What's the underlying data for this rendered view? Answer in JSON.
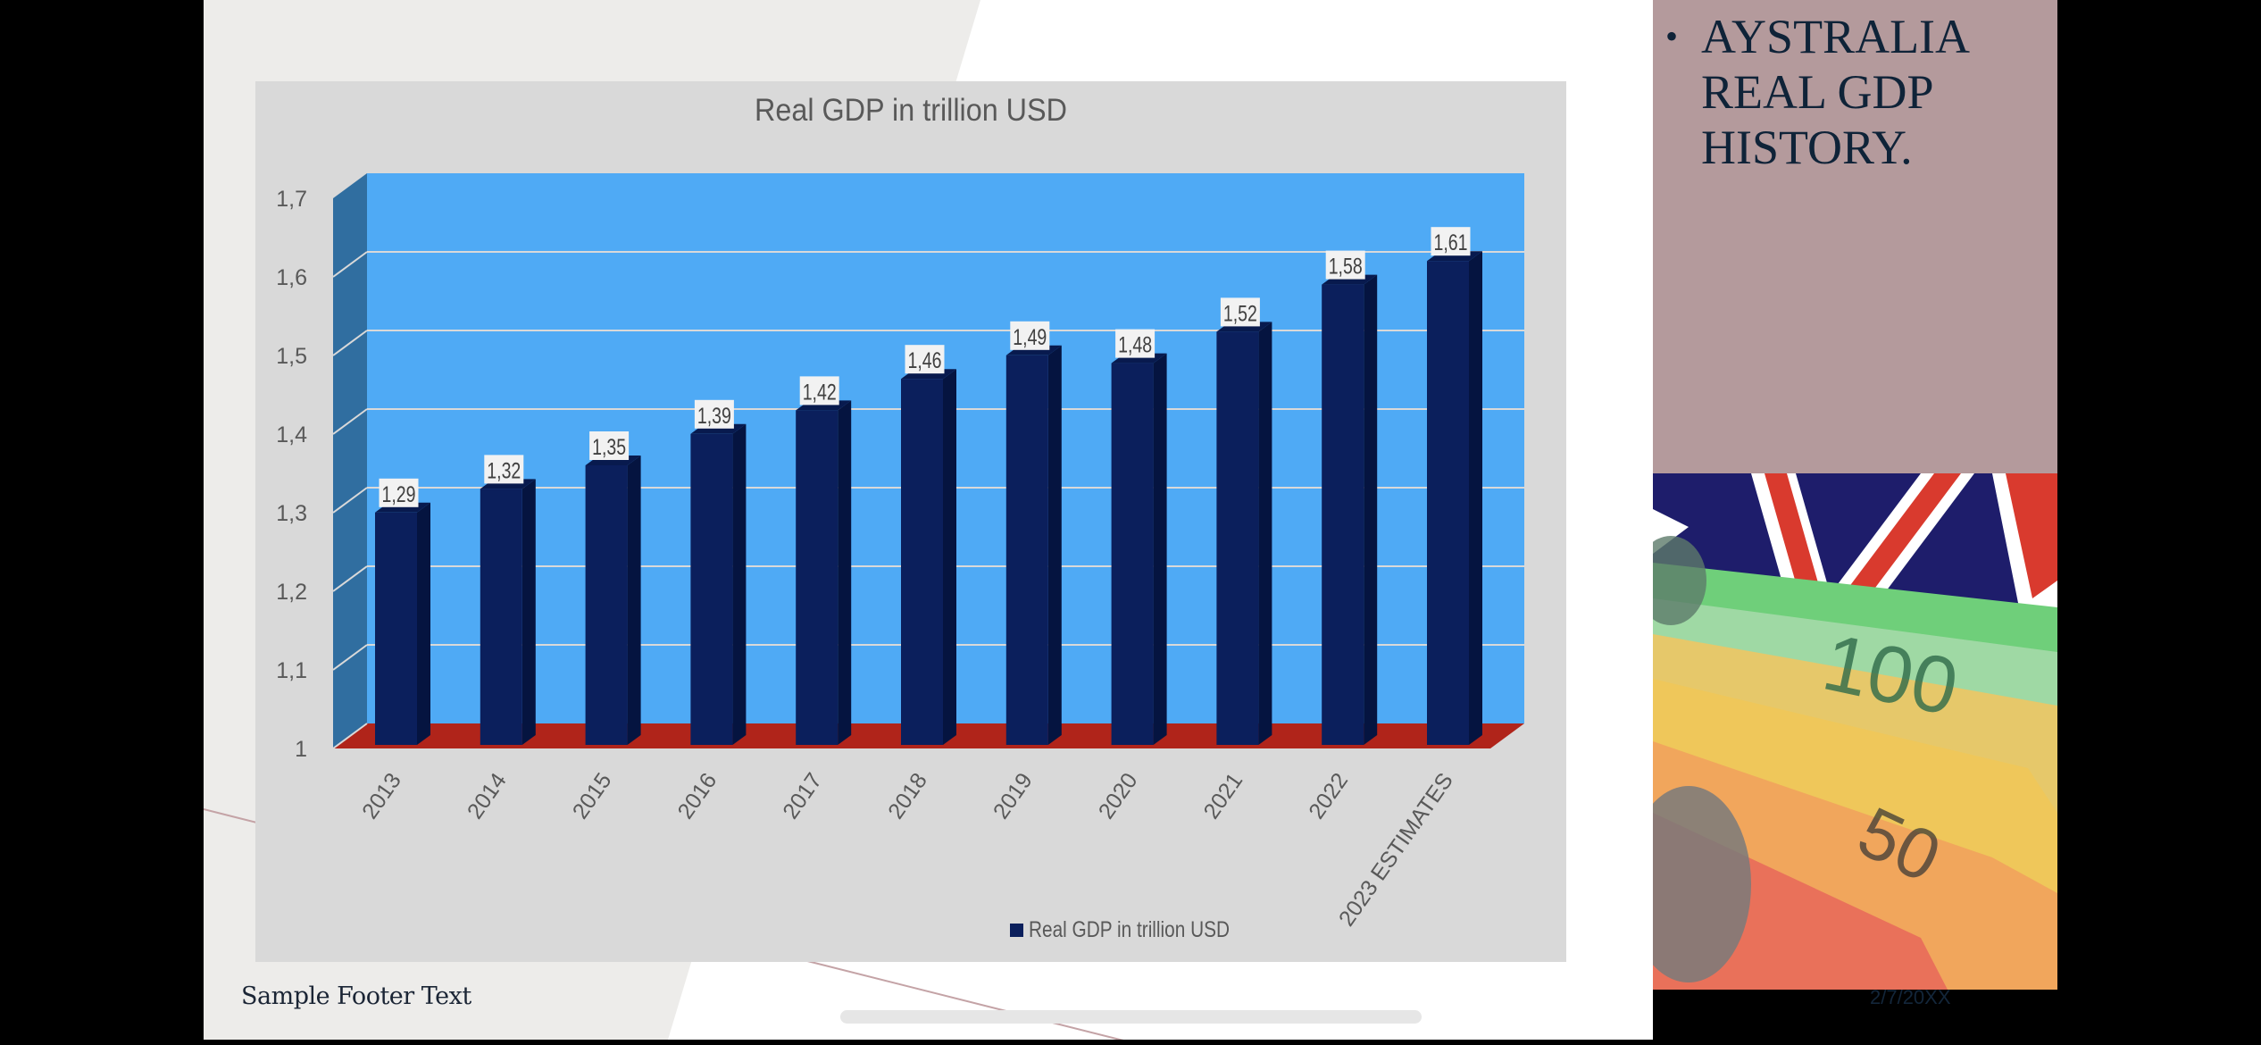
{
  "slide": {
    "footer_text": "Sample Footer Text",
    "date_text": "2/7/20XX",
    "side_panel": {
      "bullet": "•",
      "title": "AYSTRALIA REAL GDP HISTORY."
    },
    "photo_description": "Australian flag with fanned Australian banknotes (100 and 50 dollar notes)",
    "colors": {
      "chart_panel_bg": "#d9d9d9",
      "back_wall": "#4faaf5",
      "side_wall": "#306ea0",
      "floor": "#b0241a",
      "bar_front": "#0b1f5c",
      "bar_side": "#051440",
      "side_panel_bg": "#b49a9c"
    }
  },
  "chart_data": {
    "type": "bar",
    "style": "3d-column",
    "title": "Real GDP in trillion USD",
    "xlabel": "",
    "ylabel": "",
    "categories": [
      "2013",
      "2014",
      "2015",
      "2016",
      "2017",
      "2018",
      "2019",
      "2020",
      "2021",
      "2022",
      "2023 ESTIMATES"
    ],
    "series": [
      {
        "name": "Real GDP in trillion USD",
        "values": [
          1.29,
          1.32,
          1.35,
          1.39,
          1.42,
          1.46,
          1.49,
          1.48,
          1.52,
          1.58,
          1.61
        ],
        "data_labels": [
          "1,29",
          "1,32",
          "1,35",
          "1,39",
          "1,42",
          "1,46",
          "1,49",
          "1,48",
          "1,52",
          "1,58",
          "1,61"
        ],
        "color": "#0b1f5c"
      }
    ],
    "ylim": [
      1,
      1.7
    ],
    "yticks": [
      1,
      1.1,
      1.2,
      1.3,
      1.4,
      1.5,
      1.6,
      1.7
    ],
    "ytick_labels": [
      "1",
      "1,1",
      "1,2",
      "1,3",
      "1,4",
      "1,5",
      "1,6",
      "1,7"
    ],
    "grid": true,
    "legend": "bottom-center"
  }
}
